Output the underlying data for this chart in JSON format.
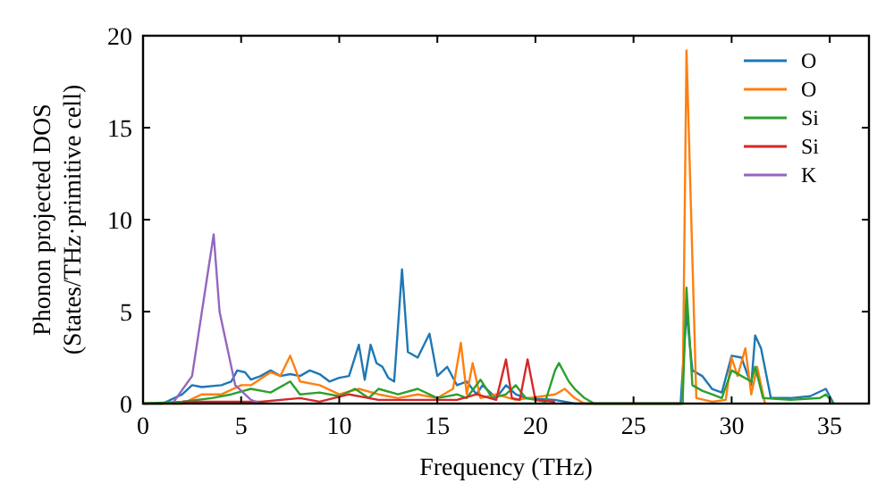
{
  "chart_data": {
    "type": "line",
    "xlabel": "Frequency (THz)",
    "ylabel": "Phonon projected DOS\n(States/THz·primitive cell)",
    "xlim": [
      0,
      37
    ],
    "ylim": [
      0,
      20
    ],
    "xticks": [
      0,
      5,
      10,
      15,
      20,
      25,
      30,
      35
    ],
    "yticks": [
      0,
      5,
      10,
      15,
      20
    ],
    "legend": "top right",
    "grid": false,
    "series": [
      {
        "name": "O",
        "color": "#1f77b4",
        "x": [
          0,
          1,
          2,
          2.5,
          3,
          4,
          4.5,
          4.8,
          5.2,
          5.5,
          6,
          6.5,
          7,
          7.5,
          8,
          8.5,
          9,
          9.5,
          10,
          10.5,
          11,
          11.3,
          11.6,
          11.9,
          12.2,
          12.5,
          12.8,
          13.2,
          13.5,
          14,
          14.6,
          15,
          15.5,
          16,
          16.5,
          17,
          17.3,
          18,
          18.5,
          19,
          19.5,
          21,
          22,
          27.4,
          27.7,
          28,
          28.5,
          29,
          29.5,
          30,
          30.5,
          31,
          31.2,
          31.5,
          32,
          33,
          34,
          34.8,
          35.2
        ],
        "values": [
          0,
          0,
          0.5,
          1,
          0.9,
          1,
          1.2,
          1.8,
          1.7,
          1.3,
          1.5,
          1.8,
          1.5,
          1.6,
          1.5,
          1.8,
          1.6,
          1.2,
          1.4,
          1.5,
          3.2,
          1.3,
          3.2,
          2.2,
          2.0,
          1.4,
          1.2,
          7.3,
          2.8,
          2.5,
          3.8,
          1.5,
          2.0,
          1.0,
          1.2,
          0.5,
          1.0,
          0.3,
          1.0,
          0.5,
          0.3,
          0.2,
          0,
          0,
          5,
          1.8,
          1.5,
          0.8,
          0.6,
          2.6,
          2.5,
          1.0,
          3.7,
          3.0,
          0.3,
          0.3,
          0.4,
          0.8,
          0
        ]
      },
      {
        "name": "O",
        "color": "#ff7f0e",
        "x": [
          0,
          2,
          3,
          4,
          5,
          5.5,
          6.5,
          7,
          7.5,
          8,
          9,
          10,
          11,
          12,
          13,
          14,
          15,
          15.8,
          16.2,
          16.5,
          16.8,
          17.2,
          18,
          19,
          21,
          21.5,
          22,
          22.5,
          27.5,
          27.7,
          28.2,
          29,
          29.7,
          30,
          30.3,
          30.7,
          31,
          31.3,
          31.7
        ],
        "values": [
          0,
          0,
          0.5,
          0.5,
          1.0,
          1.0,
          1.7,
          1.5,
          2.6,
          1.2,
          1.0,
          0.5,
          0.8,
          0.5,
          0.3,
          0.5,
          0.3,
          0.8,
          3.3,
          0.5,
          2.2,
          0.3,
          0.5,
          0.2,
          0.5,
          0.8,
          0.3,
          0,
          0,
          19.2,
          0.3,
          0.1,
          0.2,
          2.5,
          1.5,
          3.0,
          0.5,
          2.0,
          0
        ]
      },
      {
        "name": "Si",
        "color": "#2ca02c",
        "x": [
          0,
          2,
          3.5,
          4.5,
          5.5,
          6.5,
          7.5,
          8,
          9,
          10,
          10.8,
          11.5,
          12,
          13,
          14,
          15,
          16,
          16.5,
          17.2,
          17.8,
          18.5,
          19,
          19.5,
          20.5,
          21,
          21.2,
          21.7,
          22,
          22.5,
          23,
          27.5,
          27.7,
          28,
          28.5,
          29,
          29.5,
          30,
          30.5,
          31,
          31.2,
          31.6,
          33,
          34.5,
          34.8,
          35.2
        ],
        "values": [
          0,
          0.1,
          0.3,
          0.5,
          0.8,
          0.6,
          1.2,
          0.5,
          0.6,
          0.4,
          0.8,
          0.3,
          0.8,
          0.5,
          0.8,
          0.3,
          0.5,
          0.3,
          1.3,
          0.3,
          0.5,
          1.0,
          0.3,
          0.1,
          1.8,
          2.2,
          1.2,
          0.8,
          0.3,
          0,
          0,
          6.3,
          1.0,
          0.7,
          0.5,
          0.3,
          1.8,
          1.5,
          1.2,
          2.0,
          0.3,
          0.2,
          0.3,
          0.5,
          0
        ]
      },
      {
        "name": "Si",
        "color": "#d62728",
        "x": [
          2,
          4,
          6,
          8,
          9,
          10.5,
          12,
          14,
          16,
          17,
          18,
          18.5,
          18.8,
          19.2,
          19.6,
          20,
          21
        ],
        "values": [
          0.1,
          0.1,
          0.1,
          0.3,
          0.1,
          0.5,
          0.2,
          0.2,
          0.2,
          0.5,
          0.2,
          2.4,
          0.3,
          0.2,
          2.4,
          0.2,
          0.1
        ]
      },
      {
        "name": "K",
        "color": "#9467bd",
        "x": [
          1.5,
          2.5,
          3,
          3.6,
          3.9,
          4.2,
          4.7,
          5.5,
          6
        ],
        "values": [
          0,
          1.5,
          5,
          9.2,
          5,
          3.5,
          1,
          0.2,
          0
        ]
      }
    ]
  }
}
